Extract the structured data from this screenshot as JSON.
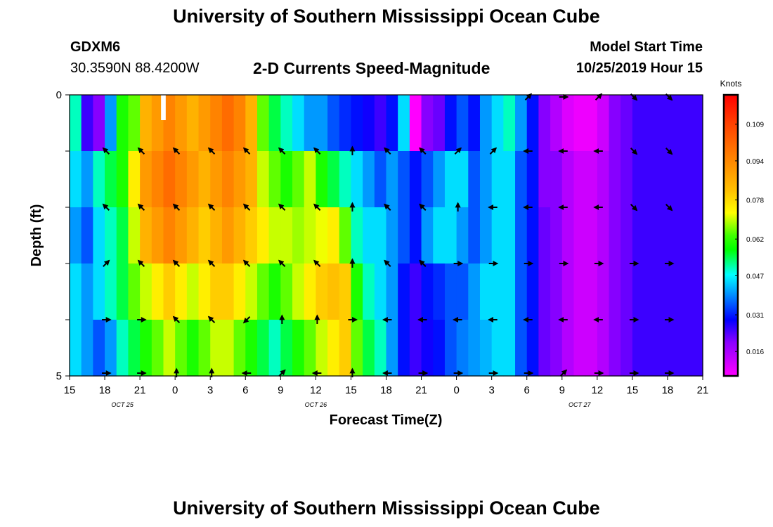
{
  "header": {
    "title": "University of Southern Mississippi Ocean Cube",
    "station": "GDXM6",
    "coords": "30.3590N 88.4200W",
    "subtitle": "2-D Currents Speed-Magnitude",
    "model_start_label": "Model Start Time",
    "model_start_value": "10/25/2019 Hour 15"
  },
  "footer": {
    "title": "University of Southern Mississippi Ocean Cube"
  },
  "chart_data": {
    "type": "heatmap",
    "title": "2-D Currents Speed-Magnitude",
    "xlabel": "Forecast Time(Z)",
    "ylabel": "Depth (ft)",
    "x_range_hours": [
      0,
      54
    ],
    "y_range_depth": [
      0,
      5
    ],
    "x_ticks": [
      "15",
      "18",
      "21",
      "0",
      "3",
      "6",
      "9",
      "12",
      "15",
      "18",
      "21",
      "0",
      "3",
      "6",
      "9",
      "12",
      "15",
      "18",
      "21"
    ],
    "y_ticks": [
      "0",
      "",
      "",
      "",
      "",
      "5"
    ],
    "date_labels": [
      {
        "text": "OCT 25",
        "hour": 4.5
      },
      {
        "text": "OCT 26",
        "hour": 21
      },
      {
        "text": "OCT 27",
        "hour": 43.5
      }
    ],
    "depth_layers": 5,
    "colorbar": {
      "unit": "Knots",
      "min": 0.006,
      "max": 0.121,
      "ticks": [
        0.016,
        0.031,
        0.047,
        0.062,
        0.078,
        0.094,
        0.109
      ]
    },
    "missing_cell": {
      "hour_start": 7.8,
      "hour_end": 8.2,
      "depth_start": 0,
      "depth_end": 0.45
    },
    "speed_profile": {
      "description": "Approximate speed (knots) per hourly column and depth layer (layer 1 = surface)",
      "hours": [
        0,
        1,
        2,
        3,
        4,
        5,
        6,
        7,
        8,
        9,
        10,
        11,
        12,
        13,
        14,
        15,
        16,
        17,
        18,
        19,
        20,
        21,
        22,
        23,
        24,
        25,
        26,
        27,
        28,
        29,
        30,
        31,
        32,
        33,
        34,
        35,
        36,
        37,
        38,
        39,
        40,
        41,
        42,
        43,
        44,
        45,
        46,
        47,
        48,
        49,
        50,
        51,
        52,
        53
      ],
      "layer_1": [
        0.05,
        0.025,
        0.02,
        0.04,
        0.06,
        0.065,
        0.085,
        0.09,
        0.095,
        0.09,
        0.085,
        0.09,
        0.095,
        0.1,
        0.095,
        0.085,
        0.065,
        0.055,
        0.05,
        0.045,
        0.04,
        0.04,
        0.035,
        0.032,
        0.03,
        0.028,
        0.025,
        0.03,
        0.045,
        0.005,
        0.02,
        0.022,
        0.03,
        0.035,
        0.03,
        0.04,
        0.045,
        0.05,
        0.04,
        0.03,
        0.02,
        0.015,
        0.01,
        0.008,
        0.008,
        0.012,
        0.02,
        0.022,
        0.025,
        0.025,
        0.025,
        0.025,
        0.025,
        0.025
      ],
      "layer_2": [
        0.045,
        0.04,
        0.05,
        0.055,
        0.06,
        0.075,
        0.09,
        0.095,
        0.1,
        0.095,
        0.09,
        0.085,
        0.09,
        0.095,
        0.09,
        0.085,
        0.07,
        0.065,
        0.06,
        0.065,
        0.07,
        0.06,
        0.055,
        0.05,
        0.045,
        0.04,
        0.035,
        0.04,
        0.035,
        0.03,
        0.035,
        0.04,
        0.045,
        0.045,
        0.035,
        0.04,
        0.045,
        0.045,
        0.035,
        0.03,
        0.02,
        0.02,
        0.015,
        0.012,
        0.012,
        0.015,
        0.02,
        0.022,
        0.025,
        0.025,
        0.025,
        0.025,
        0.025,
        0.025
      ],
      "layer_3": [
        0.04,
        0.035,
        0.045,
        0.05,
        0.055,
        0.07,
        0.085,
        0.09,
        0.095,
        0.09,
        0.085,
        0.08,
        0.085,
        0.09,
        0.085,
        0.08,
        0.075,
        0.07,
        0.07,
        0.068,
        0.07,
        0.072,
        0.075,
        0.065,
        0.05,
        0.045,
        0.045,
        0.04,
        0.035,
        0.03,
        0.04,
        0.045,
        0.045,
        0.04,
        0.035,
        0.04,
        0.045,
        0.045,
        0.035,
        0.03,
        0.022,
        0.02,
        0.015,
        0.012,
        0.012,
        0.015,
        0.02,
        0.022,
        0.025,
        0.025,
        0.025,
        0.025,
        0.025,
        0.025
      ],
      "layer_4": [
        0.045,
        0.04,
        0.045,
        0.05,
        0.055,
        0.065,
        0.07,
        0.075,
        0.08,
        0.075,
        0.07,
        0.075,
        0.08,
        0.08,
        0.075,
        0.07,
        0.065,
        0.06,
        0.065,
        0.07,
        0.075,
        0.08,
        0.082,
        0.08,
        0.06,
        0.05,
        0.045,
        0.04,
        0.03,
        0.025,
        0.03,
        0.032,
        0.035,
        0.035,
        0.04,
        0.045,
        0.045,
        0.045,
        0.035,
        0.03,
        0.022,
        0.02,
        0.015,
        0.012,
        0.012,
        0.015,
        0.02,
        0.022,
        0.025,
        0.025,
        0.025,
        0.025,
        0.025,
        0.025
      ],
      "layer_5": [
        0.045,
        0.04,
        0.035,
        0.04,
        0.05,
        0.055,
        0.06,
        0.065,
        0.07,
        0.065,
        0.06,
        0.065,
        0.07,
        0.07,
        0.065,
        0.06,
        0.055,
        0.05,
        0.055,
        0.06,
        0.065,
        0.07,
        0.075,
        0.08,
        0.065,
        0.055,
        0.05,
        0.04,
        0.03,
        0.025,
        0.028,
        0.03,
        0.035,
        0.038,
        0.04,
        0.042,
        0.045,
        0.045,
        0.035,
        0.03,
        0.022,
        0.02,
        0.015,
        0.012,
        0.012,
        0.015,
        0.02,
        0.022,
        0.025,
        0.025,
        0.025,
        0.025,
        0.025,
        0.025
      ]
    },
    "vectors": {
      "description": "Current direction arrows by forecast hour and depth layer; direction in compass degrees (0 = north).",
      "hours": [
        3,
        6,
        9,
        12,
        15,
        18,
        21,
        24,
        27,
        30,
        33,
        36,
        39,
        42,
        45,
        48,
        51
      ],
      "layer_1": [
        null,
        null,
        null,
        null,
        null,
        null,
        null,
        null,
        null,
        null,
        null,
        null,
        45,
        90,
        45,
        135,
        135
      ],
      "layer_2": [
        315,
        315,
        315,
        315,
        315,
        315,
        315,
        0,
        315,
        315,
        45,
        45,
        270,
        270,
        270,
        135,
        135
      ],
      "layer_3": [
        315,
        315,
        315,
        315,
        315,
        315,
        315,
        0,
        315,
        315,
        0,
        270,
        270,
        270,
        270,
        135,
        135
      ],
      "layer_4": [
        45,
        315,
        315,
        315,
        315,
        315,
        315,
        0,
        315,
        315,
        90,
        90,
        90,
        90,
        90,
        90,
        90
      ],
      "layer_5": [
        90,
        90,
        315,
        315,
        225,
        0,
        0,
        90,
        270,
        270,
        270,
        270,
        270,
        270,
        270,
        90,
        90
      ],
      "layer_6": [
        90,
        90,
        0,
        0,
        270,
        45,
        270,
        0,
        270,
        90,
        90,
        90,
        90,
        45,
        90,
        90,
        90
      ]
    }
  }
}
